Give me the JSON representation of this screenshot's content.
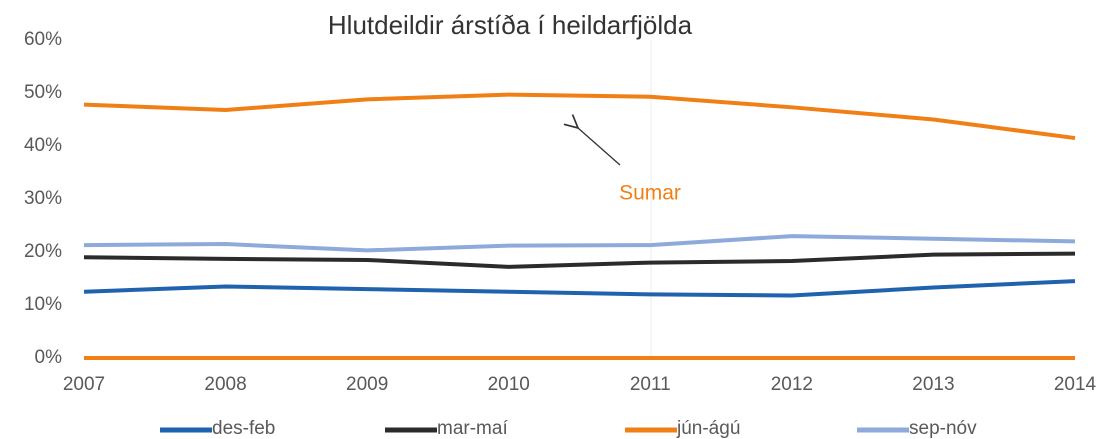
{
  "chart_data": {
    "type": "line",
    "title": "Hlutdeildir árstíða í heildarfjölda",
    "x": [
      2007,
      2008,
      2009,
      2010,
      2011,
      2012,
      2013,
      2014
    ],
    "series": [
      {
        "name": "des-feb",
        "color": "#1f62ad",
        "values": [
          12.5,
          13.5,
          13,
          12.5,
          12,
          11.8,
          13.3,
          14.5
        ]
      },
      {
        "name": "mar-maí",
        "color": "#2b2b2b",
        "values": [
          19,
          18.7,
          18.5,
          17.2,
          18,
          18.3,
          19.5,
          19.7
        ]
      },
      {
        "name": "jún-ágú",
        "color": "#f07f16",
        "values": [
          47.8,
          46.8,
          48.8,
          49.7,
          49.3,
          47.3,
          45,
          41.5
        ]
      },
      {
        "name": "sep-nóv",
        "color": "#8eaadb",
        "values": [
          21.3,
          21.5,
          20.3,
          21.2,
          21.3,
          23,
          22.5,
          22
        ]
      }
    ],
    "xlim": [
      2007,
      2014
    ],
    "xticks": [
      2007,
      2008,
      2009,
      2010,
      2011,
      2012,
      2013,
      2014
    ],
    "ylim": [
      0,
      60
    ],
    "yticks": [
      {
        "value": 0,
        "label": "0%"
      },
      {
        "value": 10,
        "label": "10%"
      },
      {
        "value": 20,
        "label": "20%"
      },
      {
        "value": 30,
        "label": "30%"
      },
      {
        "value": 40,
        "label": "40%"
      },
      {
        "value": 50,
        "label": "50%"
      },
      {
        "value": 60,
        "label": "60%"
      }
    ],
    "annotation": "Sumar"
  }
}
